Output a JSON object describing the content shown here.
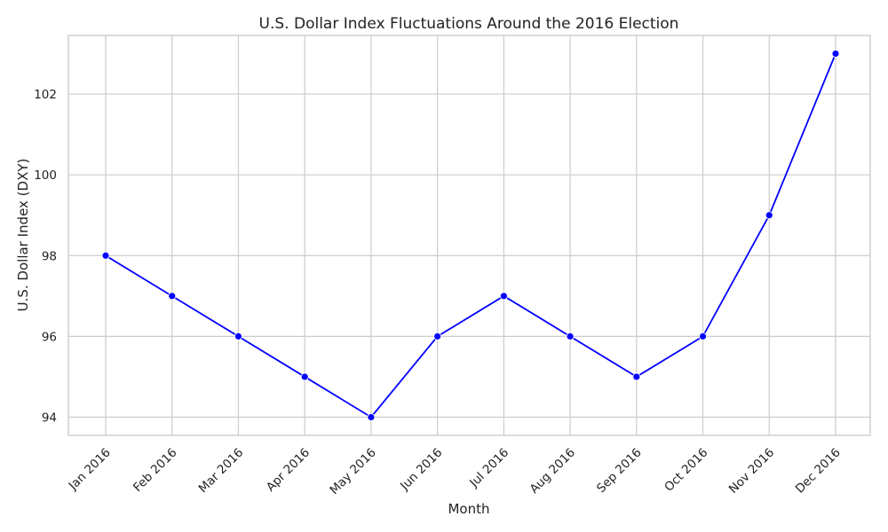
{
  "chart_data": {
    "type": "line",
    "title": "U.S. Dollar Index Fluctuations Around the 2016 Election",
    "xlabel": "Month",
    "ylabel": "U.S. Dollar Index (DXY)",
    "categories": [
      "Jan 2016",
      "Feb 2016",
      "Mar 2016",
      "Apr 2016",
      "May 2016",
      "Jun 2016",
      "Jul 2016",
      "Aug 2016",
      "Sep 2016",
      "Oct 2016",
      "Nov 2016",
      "Dec 2016"
    ],
    "series": [
      {
        "values": [
          98,
          97,
          96,
          95,
          94,
          96,
          97,
          96,
          95,
          96,
          99,
          103
        ],
        "color": "#0000ff"
      }
    ],
    "ylim": [
      93.55,
      103.45
    ],
    "yticks": [
      94,
      96,
      98,
      100,
      102
    ],
    "grid": true,
    "markers": true
  }
}
